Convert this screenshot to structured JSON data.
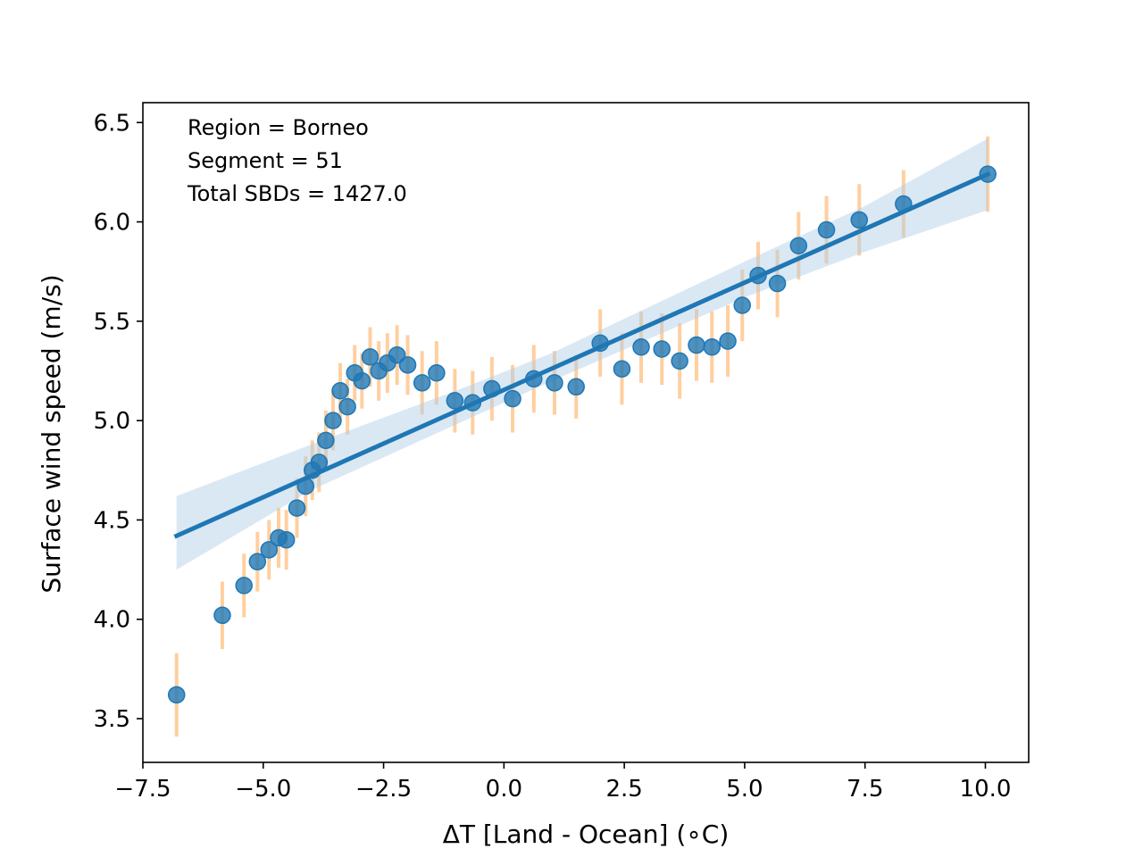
{
  "chart_data": {
    "type": "scatter",
    "xlabel": "ΔT [Land - Ocean] (∘C)",
    "ylabel": "Surface wind speed (m/s)",
    "xlim": [
      -7.5,
      10.9
    ],
    "ylim": [
      3.28,
      6.6
    ],
    "xticks": [
      -7.5,
      -5.0,
      -2.5,
      0.0,
      2.5,
      5.0,
      7.5,
      10.0
    ],
    "xtick_labels": [
      "−7.5",
      "−5.0",
      "−2.5",
      "0.0",
      "2.5",
      "5.0",
      "7.5",
      "10.0"
    ],
    "yticks": [
      3.5,
      4.0,
      4.5,
      5.0,
      5.5,
      6.0,
      6.5
    ],
    "ytick_labels": [
      "3.5",
      "4.0",
      "4.5",
      "5.0",
      "5.5",
      "6.0",
      "6.5"
    ],
    "grid": false,
    "annotations": [
      "Region = Borneo",
      "Segment = 51",
      "Total SBDs = 1427.0"
    ],
    "colors": {
      "points": "#1f77b4",
      "errorbars": "#ffbb78",
      "fit_line": "#1f77b4",
      "confidence_band": "#aecbe6"
    },
    "series": [
      {
        "x": [
          -6.8,
          -5.85,
          -5.4,
          -5.12,
          -4.88,
          -4.68,
          -4.52,
          -4.3,
          -4.12,
          -3.98,
          -3.84,
          -3.7,
          -3.55,
          -3.4,
          -3.25,
          -3.1,
          -2.95,
          -2.78,
          -2.6,
          -2.42,
          -2.22,
          -2.0,
          -1.7,
          -1.4,
          -1.02,
          -0.65,
          -0.25,
          0.18,
          0.62,
          1.05,
          1.5,
          2.0,
          2.45,
          2.85,
          3.28,
          3.65,
          4.0,
          4.32,
          4.65,
          4.95,
          5.28,
          5.68,
          6.12,
          6.7,
          7.38,
          8.3,
          10.05
        ],
        "y": [
          3.62,
          4.02,
          4.17,
          4.29,
          4.35,
          4.41,
          4.4,
          4.56,
          4.67,
          4.75,
          4.79,
          4.9,
          5.0,
          5.15,
          5.07,
          5.24,
          5.2,
          5.32,
          5.25,
          5.29,
          5.33,
          5.28,
          5.19,
          5.24,
          5.1,
          5.09,
          5.16,
          5.11,
          5.21,
          5.19,
          5.17,
          5.39,
          5.26,
          5.37,
          5.36,
          5.3,
          5.38,
          5.37,
          5.4,
          5.58,
          5.73,
          5.69,
          5.88,
          5.96,
          6.01,
          6.09,
          6.24
        ],
        "yerr": [
          0.21,
          0.17,
          0.16,
          0.15,
          0.15,
          0.15,
          0.15,
          0.15,
          0.15,
          0.15,
          0.15,
          0.15,
          0.15,
          0.14,
          0.14,
          0.14,
          0.14,
          0.15,
          0.15,
          0.15,
          0.15,
          0.15,
          0.16,
          0.16,
          0.16,
          0.16,
          0.16,
          0.17,
          0.17,
          0.16,
          0.16,
          0.17,
          0.18,
          0.18,
          0.18,
          0.19,
          0.18,
          0.18,
          0.18,
          0.18,
          0.17,
          0.17,
          0.17,
          0.17,
          0.18,
          0.17,
          0.19
        ]
      }
    ],
    "fit": {
      "type": "linear",
      "x": [
        -6.8,
        10.05
      ],
      "y": [
        4.42,
        6.24
      ],
      "band_x": [
        -6.8,
        -4.0,
        -1.0,
        1.0,
        5.0,
        7.5,
        10.05
      ],
      "band_lower": [
        4.25,
        4.65,
        4.98,
        5.2,
        5.62,
        5.85,
        6.06
      ],
      "band_upper": [
        4.62,
        4.88,
        5.15,
        5.34,
        5.8,
        6.08,
        6.42
      ]
    }
  }
}
